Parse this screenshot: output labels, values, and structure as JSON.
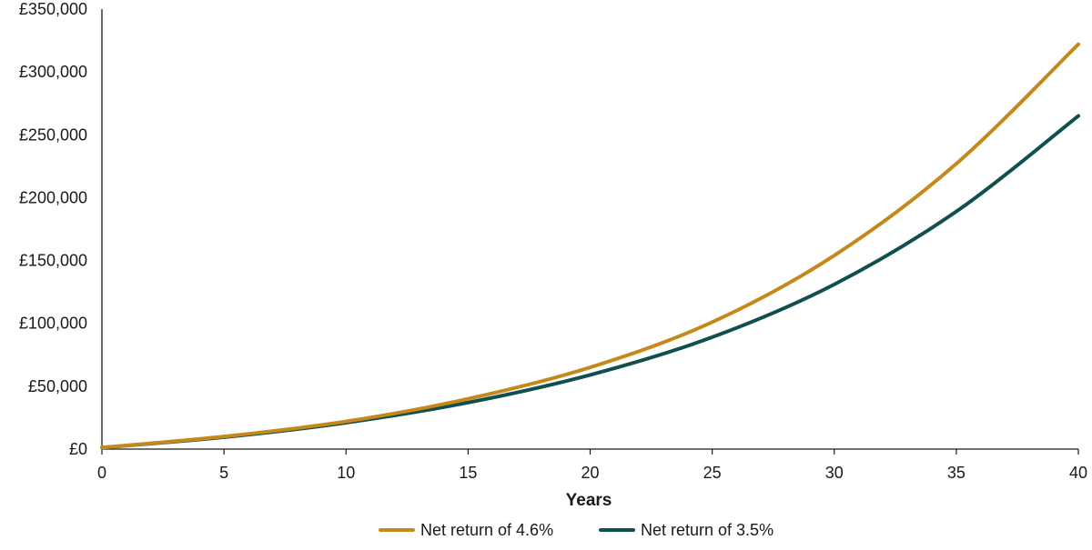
{
  "chart_data": {
    "type": "line",
    "title": "",
    "xlabel": "Years",
    "ylabel": "",
    "xlim": [
      0,
      40
    ],
    "ylim": [
      0,
      350000
    ],
    "x_ticks": [
      0,
      5,
      10,
      15,
      20,
      25,
      30,
      35,
      40
    ],
    "y_ticks": [
      0,
      50000,
      100000,
      150000,
      200000,
      250000,
      300000,
      350000
    ],
    "x_tick_labels": [
      "0",
      "5",
      "10",
      "15",
      "20",
      "25",
      "30",
      "35",
      "40"
    ],
    "y_tick_labels": [
      "£0",
      "£50,000",
      "£100,000",
      "£150,000",
      "£200,000",
      "£250,000",
      "£300,000",
      "£350,000"
    ],
    "grid": false,
    "legend_position": "bottom-center",
    "x": [
      0,
      5,
      10,
      15,
      20,
      25,
      30,
      35,
      40
    ],
    "series": [
      {
        "name": "Net return of 4.6%",
        "color": "#C4891A",
        "values": [
          1200,
          10000,
          22000,
          40000,
          65000,
          101000,
          154000,
          227000,
          322000
        ]
      },
      {
        "name": "Net return of 3.5%",
        "color": "#0F4F4E",
        "values": [
          1200,
          9500,
          21000,
          37000,
          59000,
          89000,
          131000,
          189000,
          265000
        ]
      }
    ]
  }
}
